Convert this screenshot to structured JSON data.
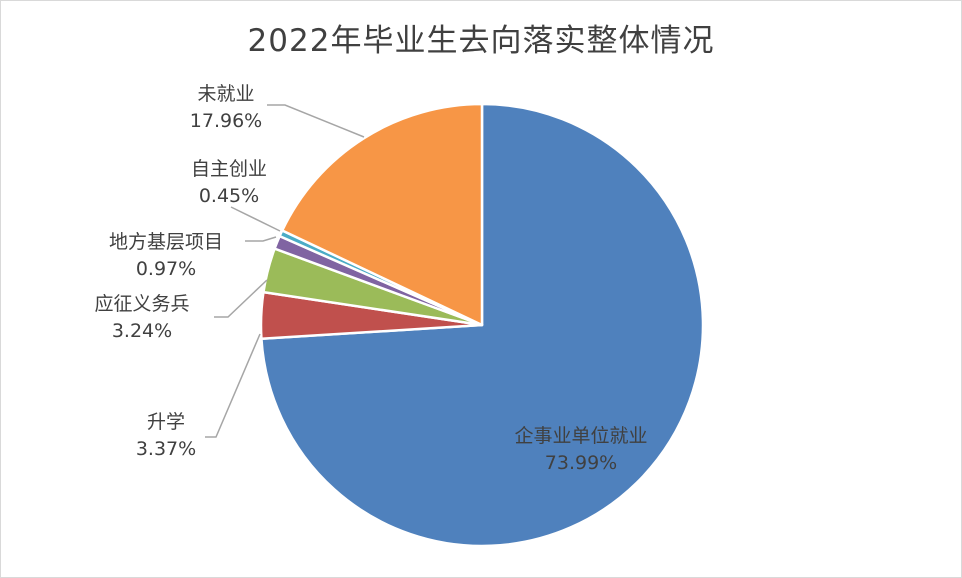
{
  "chart_data": {
    "type": "pie",
    "title": "2022年毕业生去向落实整体情况",
    "slices": [
      {
        "label": "企事业单位就业",
        "value": 73.99,
        "value_label": "73.99%",
        "color": "#4f81bd"
      },
      {
        "label": "升学",
        "value": 3.37,
        "value_label": "3.37%",
        "color": "#c0504d"
      },
      {
        "label": "应征义务兵",
        "value": 3.24,
        "value_label": "3.24%",
        "color": "#9bbb59"
      },
      {
        "label": "地方基层项目",
        "value": 0.97,
        "value_label": "0.97%",
        "color": "#8064a2"
      },
      {
        "label": "自主创业",
        "value": 0.45,
        "value_label": "0.45%",
        "color": "#4bacc6"
      },
      {
        "label": "未就业",
        "value": 17.96,
        "value_label": "17.96%",
        "color": "#f79646"
      }
    ]
  }
}
